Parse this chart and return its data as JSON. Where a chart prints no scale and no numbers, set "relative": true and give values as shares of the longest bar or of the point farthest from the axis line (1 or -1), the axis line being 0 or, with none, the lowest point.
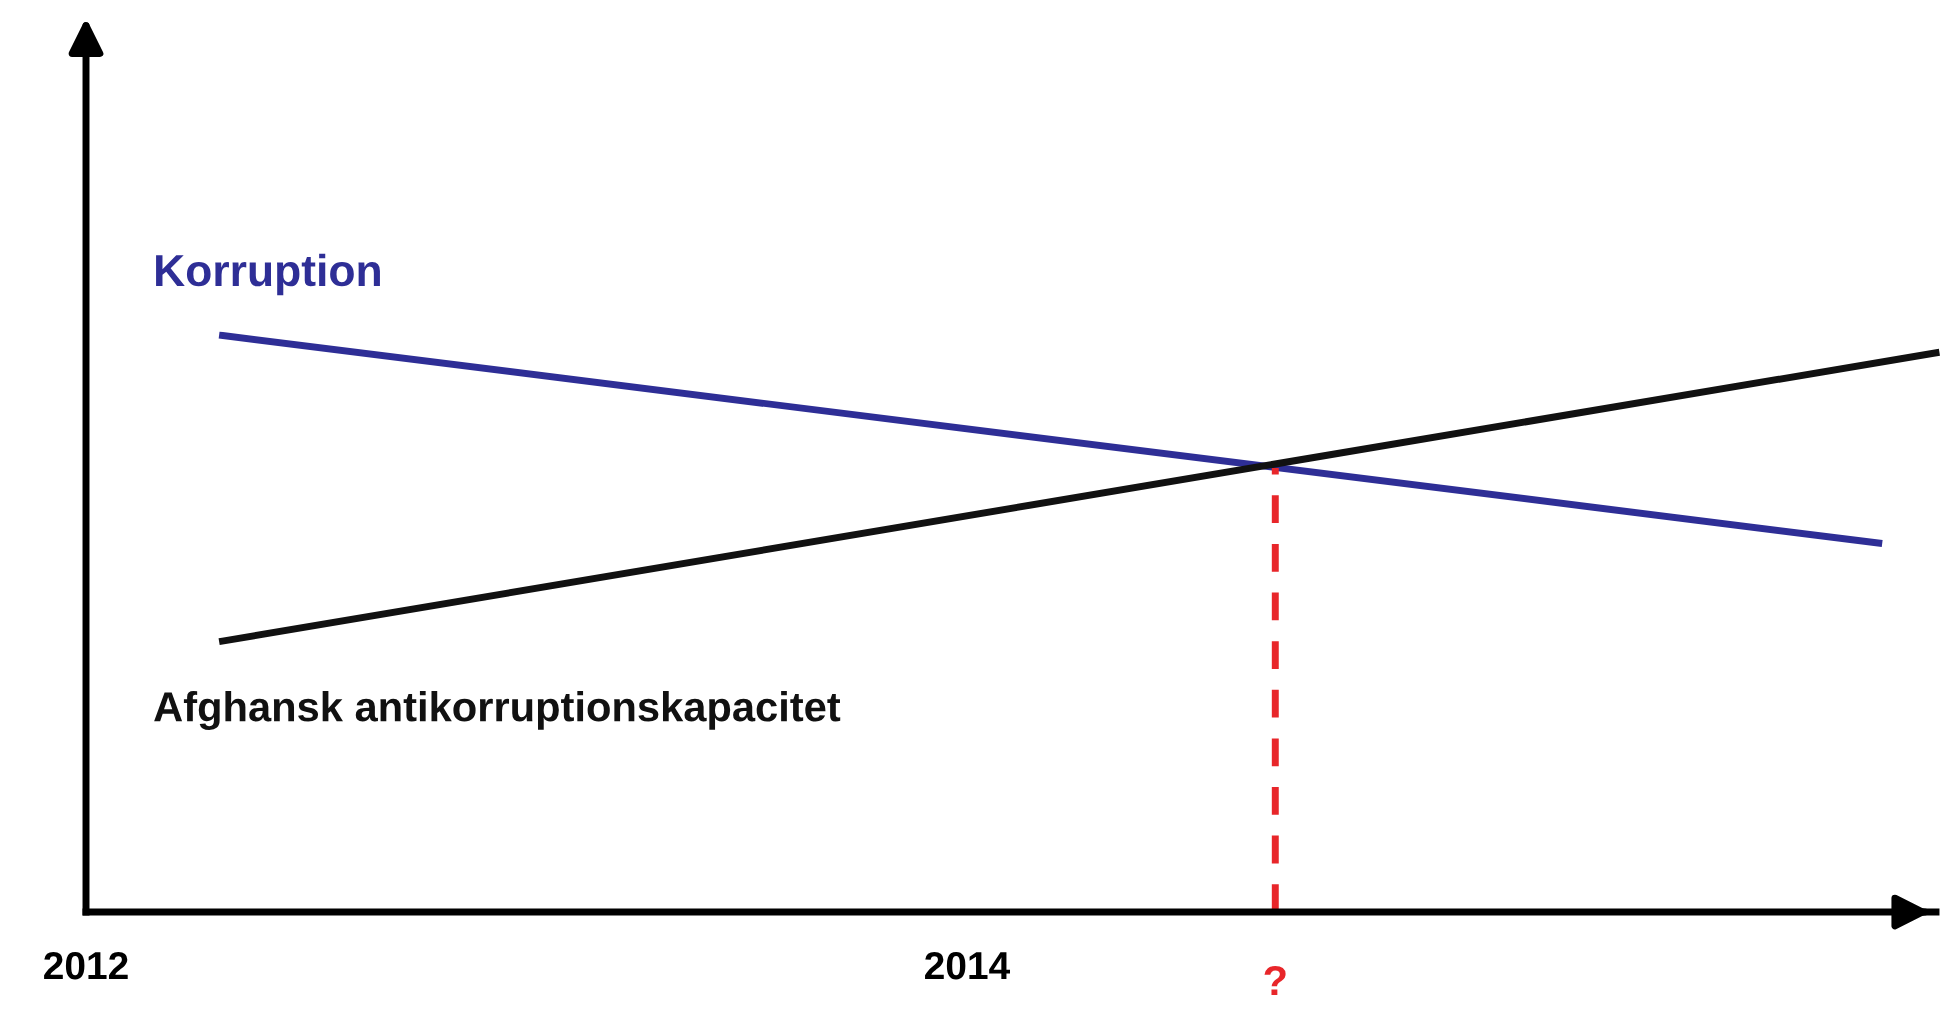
{
  "chart_data": {
    "type": "line",
    "relative": true,
    "xlim": [
      2012,
      2016.2
    ],
    "xticks": [
      2012,
      2014
    ],
    "legend": false,
    "grid": false,
    "marker": "none",
    "series": [
      {
        "name": "Korruption",
        "color": "#2e2e96",
        "x": [
          2012.31,
          2016.07
        ],
        "values": [
          1,
          0.64
        ]
      },
      {
        "name": "Afghansk antikorruptionskapacitet",
        "color": "#111111",
        "x": [
          2012.31,
          2016.2
        ],
        "values": [
          0.47,
          0.97
        ]
      },
      {
        "color": "#e8262a",
        "x": [
          2014.7,
          2014.7
        ],
        "values": [
          0,
          0.77
        ],
        "line_style": "dashed"
      }
    ],
    "annotations": [
      {
        "text": "?",
        "x": 2014.7,
        "y": 0
      }
    ]
  }
}
